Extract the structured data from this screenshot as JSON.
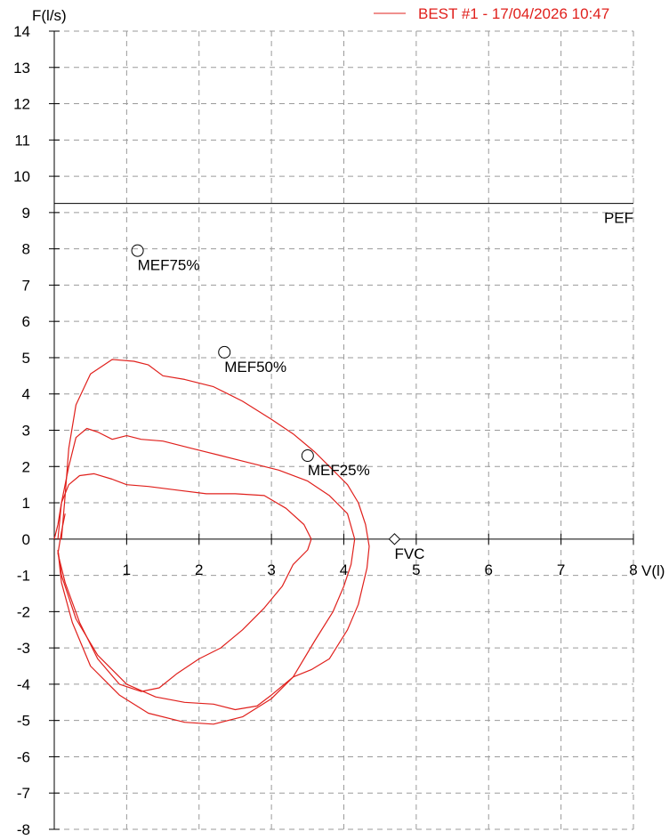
{
  "chart_data": {
    "type": "line",
    "title": "",
    "xlabel": "V(l)",
    "ylabel": "F(l/s)",
    "xlim": [
      0,
      8
    ],
    "ylim": [
      -8,
      14
    ],
    "x_ticks": [
      1,
      2,
      3,
      4,
      5,
      6,
      7,
      8
    ],
    "y_ticks": [
      14,
      13,
      12,
      11,
      10,
      9,
      8,
      7,
      6,
      5,
      4,
      3,
      2,
      1,
      0,
      -1,
      -2,
      -3,
      -4,
      -5,
      -6,
      -7,
      -8
    ],
    "grid": true,
    "legend": {
      "position": "top-right",
      "entries": [
        {
          "label": "BEST #1 - 17/04/2026  10:47",
          "color": "#e0201c"
        }
      ]
    },
    "reference_line": {
      "label": "PEF",
      "y": 9.25
    },
    "markers": [
      {
        "label": "MEF75%",
        "x": 1.15,
        "y": 7.95,
        "shape": "circle"
      },
      {
        "label": "MEF50%",
        "x": 2.35,
        "y": 5.15,
        "shape": "circle"
      },
      {
        "label": "MEF25%",
        "x": 3.5,
        "y": 2.3,
        "shape": "circle"
      },
      {
        "label": "FVC",
        "x": 4.7,
        "y": 0.0,
        "shape": "diamond"
      }
    ],
    "series": [
      {
        "color": "#e0201c",
        "points": [
          [
            0.1,
            0.0
          ],
          [
            0.15,
            1.2
          ],
          [
            0.2,
            2.5
          ],
          [
            0.3,
            3.7
          ],
          [
            0.5,
            4.55
          ],
          [
            0.8,
            4.95
          ],
          [
            1.1,
            4.9
          ],
          [
            1.3,
            4.8
          ],
          [
            1.5,
            4.5
          ],
          [
            1.8,
            4.4
          ],
          [
            2.2,
            4.2
          ],
          [
            2.6,
            3.8
          ],
          [
            3.0,
            3.3
          ],
          [
            3.3,
            2.9
          ],
          [
            3.6,
            2.4
          ],
          [
            3.85,
            1.9
          ],
          [
            4.05,
            1.5
          ],
          [
            4.2,
            1.0
          ],
          [
            4.3,
            0.4
          ],
          [
            4.35,
            -0.2
          ],
          [
            4.32,
            -0.8
          ],
          [
            4.2,
            -1.8
          ],
          [
            4.05,
            -2.5
          ],
          [
            3.8,
            -3.3
          ],
          [
            3.55,
            -3.6
          ],
          [
            3.3,
            -3.8
          ],
          [
            3.0,
            -4.3
          ],
          [
            2.8,
            -4.6
          ],
          [
            2.5,
            -4.7
          ],
          [
            2.2,
            -4.55
          ],
          [
            1.8,
            -4.5
          ],
          [
            1.4,
            -4.35
          ],
          [
            1.0,
            -4.0
          ],
          [
            0.6,
            -3.2
          ],
          [
            0.3,
            -2.2
          ],
          [
            0.1,
            -1.0
          ],
          [
            0.05,
            -0.3
          ]
        ]
      },
      {
        "color": "#e0201c",
        "points": [
          [
            0.05,
            0.0
          ],
          [
            0.1,
            1.0
          ],
          [
            0.2,
            2.0
          ],
          [
            0.3,
            2.8
          ],
          [
            0.45,
            3.05
          ],
          [
            0.6,
            2.95
          ],
          [
            0.8,
            2.75
          ],
          [
            1.0,
            2.85
          ],
          [
            1.2,
            2.75
          ],
          [
            1.5,
            2.7
          ],
          [
            1.9,
            2.5
          ],
          [
            2.3,
            2.3
          ],
          [
            2.7,
            2.1
          ],
          [
            3.1,
            1.9
          ],
          [
            3.5,
            1.6
          ],
          [
            3.8,
            1.2
          ],
          [
            4.05,
            0.7
          ],
          [
            4.15,
            0.0
          ],
          [
            4.1,
            -0.7
          ],
          [
            4.0,
            -1.3
          ],
          [
            3.85,
            -2.0
          ],
          [
            3.6,
            -2.8
          ],
          [
            3.3,
            -3.8
          ],
          [
            3.0,
            -4.4
          ],
          [
            2.6,
            -4.9
          ],
          [
            2.2,
            -5.1
          ],
          [
            1.8,
            -5.05
          ],
          [
            1.3,
            -4.8
          ],
          [
            0.9,
            -4.3
          ],
          [
            0.5,
            -3.5
          ],
          [
            0.25,
            -2.3
          ],
          [
            0.1,
            -1.2
          ],
          [
            0.05,
            -0.3
          ]
        ]
      },
      {
        "color": "#e0201c",
        "points": [
          [
            0.0,
            0.0
          ],
          [
            0.05,
            0.4
          ],
          [
            0.1,
            1.0
          ],
          [
            0.2,
            1.5
          ],
          [
            0.35,
            1.75
          ],
          [
            0.55,
            1.8
          ],
          [
            0.8,
            1.65
          ],
          [
            1.0,
            1.5
          ],
          [
            1.3,
            1.45
          ],
          [
            1.7,
            1.35
          ],
          [
            2.1,
            1.25
          ],
          [
            2.5,
            1.25
          ],
          [
            2.9,
            1.2
          ],
          [
            3.2,
            0.85
          ],
          [
            3.45,
            0.4
          ],
          [
            3.55,
            0.0
          ],
          [
            3.5,
            -0.3
          ],
          [
            3.3,
            -0.7
          ],
          [
            3.15,
            -1.3
          ],
          [
            2.9,
            -1.9
          ],
          [
            2.6,
            -2.5
          ],
          [
            2.3,
            -3.0
          ],
          [
            2.0,
            -3.3
          ],
          [
            1.7,
            -3.7
          ],
          [
            1.45,
            -4.1
          ],
          [
            1.2,
            -4.2
          ],
          [
            0.9,
            -4.0
          ],
          [
            0.6,
            -3.3
          ],
          [
            0.35,
            -2.3
          ],
          [
            0.15,
            -1.2
          ],
          [
            0.05,
            -0.4
          ],
          [
            0.1,
            0.2
          ],
          [
            0.15,
            0.7
          ]
        ]
      }
    ]
  }
}
